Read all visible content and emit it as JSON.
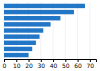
{
  "chart_data": {
    "type": "bar",
    "orientation": "horizontal",
    "categories": [
      null,
      null,
      null,
      null,
      null,
      null,
      null,
      null,
      null
    ],
    "values": [
      66,
      57,
      46,
      38,
      32,
      29,
      26,
      23,
      20
    ],
    "color": "#2176c6",
    "xlim": [
      0,
      75
    ],
    "xticks": [
      0,
      10,
      20,
      30,
      40,
      50,
      60,
      70
    ],
    "grid": true,
    "tick_labels": "x"
  }
}
